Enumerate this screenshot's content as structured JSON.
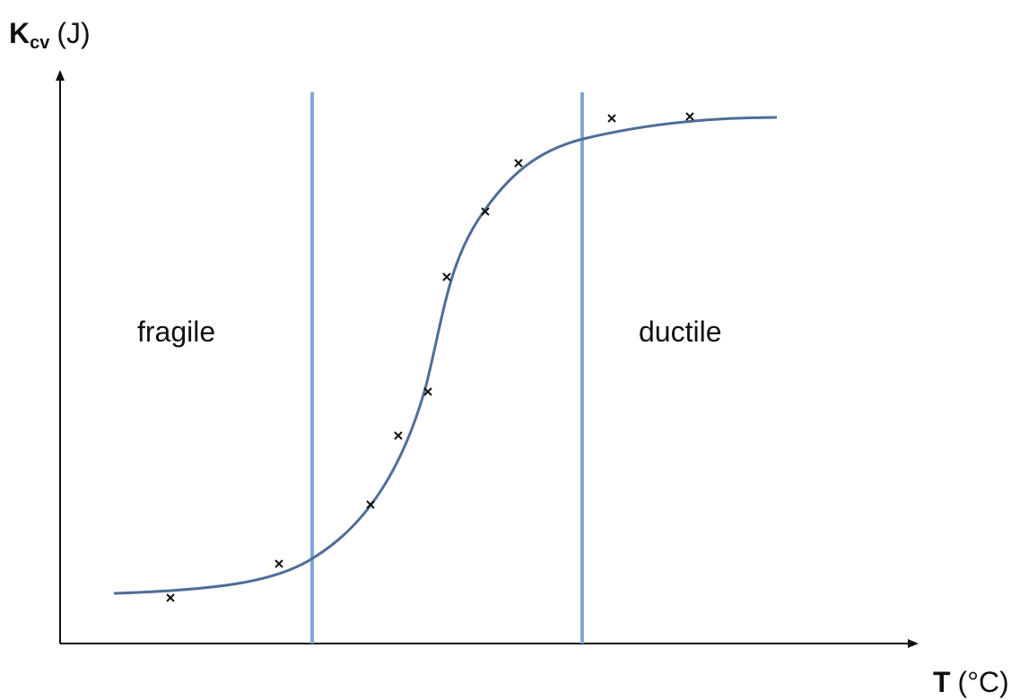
{
  "y_axis_label": {
    "symbol": "K",
    "subscript": "cv",
    "unit": "(J)"
  },
  "x_axis_label": {
    "symbol": "T",
    "unit": "(°C)"
  },
  "regions": [
    "fragile",
    "ductile"
  ]
}
